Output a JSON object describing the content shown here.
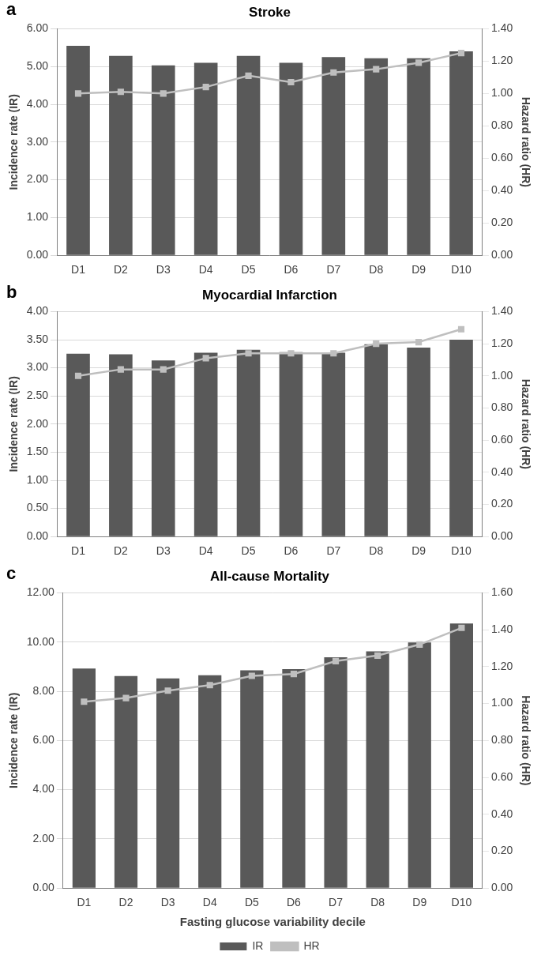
{
  "chart_data": [
    {
      "type": "bar",
      "title": "Stroke",
      "annotations": [
        "a"
      ],
      "categories": [
        "D1",
        "D2",
        "D3",
        "D4",
        "D5",
        "D6",
        "D7",
        "D8",
        "D9",
        "D10"
      ],
      "series": [
        {
          "name": "IR",
          "type": "bar",
          "color": "#595959",
          "values": [
            5.55,
            5.28,
            5.03,
            5.1,
            5.28,
            5.1,
            5.25,
            5.22,
            5.22,
            5.4
          ]
        },
        {
          "name": "HR",
          "type": "line",
          "axis": "y2",
          "color": "#bfbfbf",
          "marker": "square",
          "values": [
            1.0,
            1.01,
            1.0,
            1.04,
            1.11,
            1.07,
            1.13,
            1.15,
            1.19,
            1.25
          ]
        }
      ],
      "y_label": "Incidence rate (IR)",
      "y2_label": "Hazard ratio (HR)",
      "ylim": [
        0,
        6
      ],
      "yticks": [
        {
          "value": 0,
          "label": "0.00"
        },
        {
          "value": 1,
          "label": "1.00"
        },
        {
          "value": 2,
          "label": "2.00"
        },
        {
          "value": 3,
          "label": "3.00"
        },
        {
          "value": 4,
          "label": "4.00"
        },
        {
          "value": 5,
          "label": "5.00"
        },
        {
          "value": 6,
          "label": "6.00"
        }
      ],
      "y2lim": [
        0,
        1.4
      ],
      "y2ticks": [
        {
          "value": 0,
          "label": "0.00"
        },
        {
          "value": 0.2,
          "label": "0.20"
        },
        {
          "value": 0.4,
          "label": "0.40"
        },
        {
          "value": 0.6,
          "label": "0.60"
        },
        {
          "value": 0.8,
          "label": "0.80"
        },
        {
          "value": 1.0,
          "label": "1.00"
        },
        {
          "value": 1.2,
          "label": "1.20"
        },
        {
          "value": 1.4,
          "label": "1.40"
        }
      ],
      "grid": true
    },
    {
      "type": "bar",
      "title": "Myocardial Infarction",
      "annotations": [
        "b"
      ],
      "categories": [
        "D1",
        "D2",
        "D3",
        "D4",
        "D5",
        "D6",
        "D7",
        "D8",
        "D9",
        "D10"
      ],
      "series": [
        {
          "name": "IR",
          "type": "bar",
          "color": "#595959",
          "values": [
            3.25,
            3.24,
            3.13,
            3.27,
            3.32,
            3.28,
            3.27,
            3.42,
            3.36,
            3.5
          ]
        },
        {
          "name": "HR",
          "type": "line",
          "axis": "y2",
          "color": "#bfbfbf",
          "marker": "square",
          "values": [
            1.0,
            1.04,
            1.04,
            1.11,
            1.14,
            1.14,
            1.14,
            1.2,
            1.21,
            1.29
          ]
        }
      ],
      "y_label": "Incidence rate (IR)",
      "y2_label": "Hazard ratio (HR)",
      "ylim": [
        0,
        4
      ],
      "yticks": [
        {
          "value": 0,
          "label": "0.00"
        },
        {
          "value": 0.5,
          "label": "0.50"
        },
        {
          "value": 1,
          "label": "1.00"
        },
        {
          "value": 1.5,
          "label": "1.50"
        },
        {
          "value": 2,
          "label": "2.00"
        },
        {
          "value": 2.5,
          "label": "2.50"
        },
        {
          "value": 3,
          "label": "3.00"
        },
        {
          "value": 3.5,
          "label": "3.50"
        },
        {
          "value": 4,
          "label": "4.00"
        }
      ],
      "y2lim": [
        0,
        1.4
      ],
      "y2ticks": [
        {
          "value": 0,
          "label": "0.00"
        },
        {
          "value": 0.2,
          "label": "0.20"
        },
        {
          "value": 0.4,
          "label": "0.40"
        },
        {
          "value": 0.6,
          "label": "0.60"
        },
        {
          "value": 0.8,
          "label": "0.80"
        },
        {
          "value": 1.0,
          "label": "1.00"
        },
        {
          "value": 1.2,
          "label": "1.20"
        },
        {
          "value": 1.4,
          "label": "1.40"
        }
      ],
      "grid": true
    },
    {
      "type": "bar",
      "title": "All-cause Mortality",
      "annotations": [
        "c"
      ],
      "categories": [
        "D1",
        "D2",
        "D3",
        "D4",
        "D5",
        "D6",
        "D7",
        "D8",
        "D9",
        "D10"
      ],
      "series": [
        {
          "name": "IR",
          "type": "bar",
          "color": "#595959",
          "values": [
            8.92,
            8.62,
            8.52,
            8.65,
            8.85,
            8.9,
            9.38,
            9.62,
            9.98,
            10.75
          ]
        },
        {
          "name": "HR",
          "type": "line",
          "axis": "y2",
          "color": "#bfbfbf",
          "marker": "square",
          "values": [
            1.01,
            1.03,
            1.07,
            1.1,
            1.15,
            1.16,
            1.23,
            1.26,
            1.32,
            1.41
          ]
        }
      ],
      "x_label": "Fasting glucose variability decile",
      "y_label": "Incidence rate (IR)",
      "y2_label": "Hazard ratio (HR)",
      "ylim": [
        0,
        12
      ],
      "yticks": [
        {
          "value": 0,
          "label": "0.00"
        },
        {
          "value": 2,
          "label": "2.00"
        },
        {
          "value": 4,
          "label": "4.00"
        },
        {
          "value": 6,
          "label": "6.00"
        },
        {
          "value": 8,
          "label": "8.00"
        },
        {
          "value": 10,
          "label": "10.00"
        },
        {
          "value": 12,
          "label": "12.00"
        }
      ],
      "y2lim": [
        0,
        1.6
      ],
      "y2ticks": [
        {
          "value": 0,
          "label": "0.00"
        },
        {
          "value": 0.2,
          "label": "0.20"
        },
        {
          "value": 0.4,
          "label": "0.40"
        },
        {
          "value": 0.6,
          "label": "0.60"
        },
        {
          "value": 0.8,
          "label": "0.80"
        },
        {
          "value": 1.0,
          "label": "1.00"
        },
        {
          "value": 1.2,
          "label": "1.20"
        },
        {
          "value": 1.4,
          "label": "1.40"
        },
        {
          "value": 1.6,
          "label": "1.60"
        }
      ],
      "grid": true,
      "legend": "bottom"
    }
  ]
}
